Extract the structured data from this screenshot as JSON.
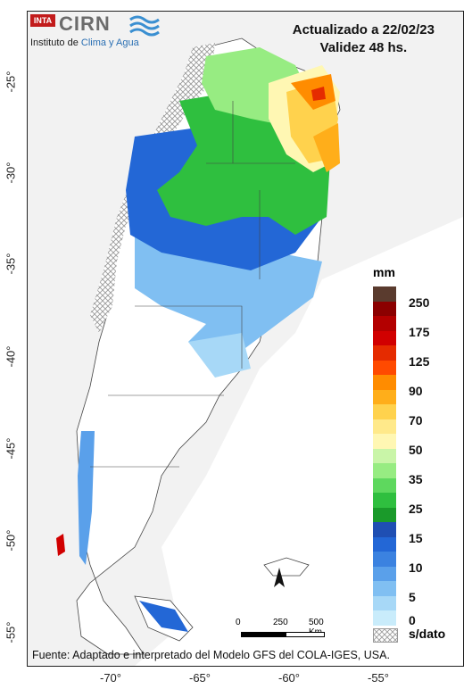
{
  "logo": {
    "inta": "INTA",
    "cirn": "CIRN",
    "subtitle_prefix": "Instituto de ",
    "subtitle_highlight": "Clima y Agua"
  },
  "header": {
    "updated": "Actualizado a 22/02/23",
    "validity": "Validez 48 hs."
  },
  "axes": {
    "latitudes": [
      "-25°",
      "-30°",
      "-35°",
      "-40°",
      "-45°",
      "-50°",
      "-55°"
    ],
    "longitudes": [
      "-70°",
      "-65°",
      "-60°",
      "-55°"
    ]
  },
  "legend": {
    "unit": "mm",
    "labels": [
      "250",
      "175",
      "125",
      "90",
      "70",
      "50",
      "35",
      "25",
      "15",
      "10",
      "5",
      "0"
    ],
    "colors": [
      "#5a3b2e",
      "#8b0000",
      "#b30000",
      "#d10000",
      "#e52b00",
      "#ff4a00",
      "#ff8c00",
      "#ffae1a",
      "#ffd24d",
      "#ffe98a",
      "#fff7b3",
      "#c9f5a8",
      "#97ec82",
      "#5ed85e",
      "#2fbf3f",
      "#1a9a2a",
      "#1f4fb3",
      "#2367d6",
      "#3b82e0",
      "#5aa0ea",
      "#80bff2",
      "#a7d8f7",
      "#c9ecfb",
      "#ffffff"
    ],
    "no_data": "s/dato"
  },
  "scale": {
    "labels": [
      "0",
      "250",
      "500 Km"
    ]
  },
  "footer": {
    "source": "Fuente: Adaptado e interpretado del Modelo GFS del COLA-IGES, USA."
  }
}
